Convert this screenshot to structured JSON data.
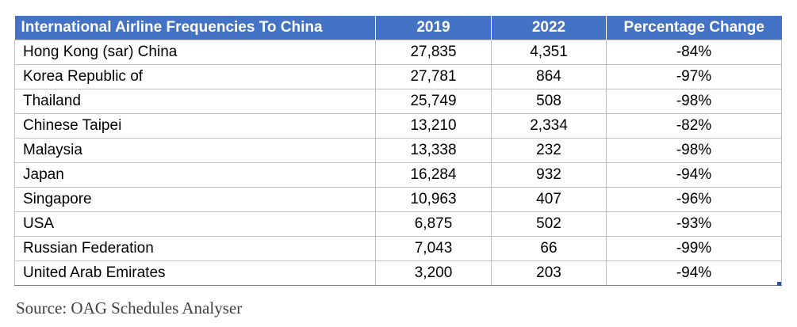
{
  "chart_data": {
    "type": "table",
    "columns": [
      "International Airline Frequencies To China",
      "2019",
      "2022",
      "Percentage Change"
    ],
    "rows": [
      {
        "country": "Hong Kong (sar) China",
        "y2019": "27,835",
        "y2022": "4,351",
        "change": "-84%"
      },
      {
        "country": "Korea Republic of",
        "y2019": "27,781",
        "y2022": "864",
        "change": "-97%"
      },
      {
        "country": "Thailand",
        "y2019": "25,749",
        "y2022": "508",
        "change": "-98%"
      },
      {
        "country": "Chinese Taipei",
        "y2019": "13,210",
        "y2022": "2,334",
        "change": "-82%"
      },
      {
        "country": "Malaysia",
        "y2019": "13,338",
        "y2022": "232",
        "change": "-98%"
      },
      {
        "country": "Japan",
        "y2019": "16,284",
        "y2022": "932",
        "change": "-94%"
      },
      {
        "country": "Singapore",
        "y2019": "10,963",
        "y2022": "407",
        "change": "-96%"
      },
      {
        "country": "USA",
        "y2019": "6,875",
        "y2022": "502",
        "change": "-93%"
      },
      {
        "country": "Russian Federation",
        "y2019": "7,043",
        "y2022": "66",
        "change": "-99%"
      },
      {
        "country": "United Arab Emirates",
        "y2019": "3,200",
        "y2022": "203",
        "change": "-94%"
      }
    ]
  },
  "source": "Source: OAG Schedules Analyser",
  "colors": {
    "header_bg": "#4472c4",
    "header_text": "#ffffff",
    "grid": "#bfbfbf"
  }
}
